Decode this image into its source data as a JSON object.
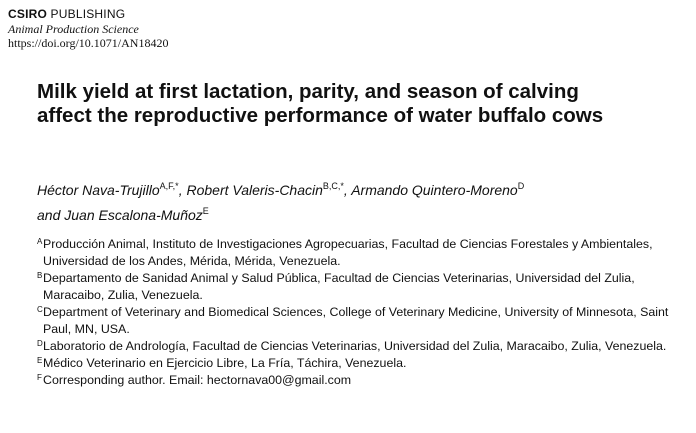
{
  "header": {
    "publisher_bold": "CSIRO",
    "publisher_rest": " PUBLISHING",
    "journal": "Animal Production Science",
    "doi": "https://doi.org/10.1071/AN18420"
  },
  "title": {
    "line1": "Milk yield at first lactation, parity, and season of calving",
    "line2": "affect the reproductive performance of water buffalo cows"
  },
  "authors": [
    {
      "name": "Héctor Nava-Trujillo",
      "sup": "A,F,*",
      "sep": ", "
    },
    {
      "name": "Robert Valeris-Chacin",
      "sup": "B,C,*",
      "sep": ", "
    },
    {
      "name": "Armando Quintero-Moreno",
      "sup": "D",
      "sep": ""
    },
    {
      "name": "and Juan Escalona-Muñoz",
      "sup": "E",
      "sep": ""
    }
  ],
  "affiliations": [
    {
      "sup": "A",
      "text": "Producción Animal, Instituto de Investigaciones Agropecuarias, Facultad de Ciencias Forestales y Ambientales, Universidad de los Andes, Mérida, Mérida, Venezuela."
    },
    {
      "sup": "B",
      "text": "Departamento de Sanidad Animal y Salud Pública, Facultad de Ciencias Veterinarias, Universidad del Zulia, Maracaibo, Zulia, Venezuela."
    },
    {
      "sup": "C",
      "text": "Department of Veterinary and Biomedical Sciences, College of Veterinary Medicine, University of Minnesota, Saint Paul, MN, USA."
    },
    {
      "sup": "D",
      "text": "Laboratorio de Andrología, Facultad de Ciencias Veterinarias, Universidad del Zulia, Maracaibo, Zulia, Venezuela."
    },
    {
      "sup": "E",
      "text": "Médico Veterinario en Ejercicio Libre, La Fría, Táchira, Venezuela."
    },
    {
      "sup": "F",
      "text": "Corresponding author. Email: hectornava00@gmail.com"
    }
  ]
}
